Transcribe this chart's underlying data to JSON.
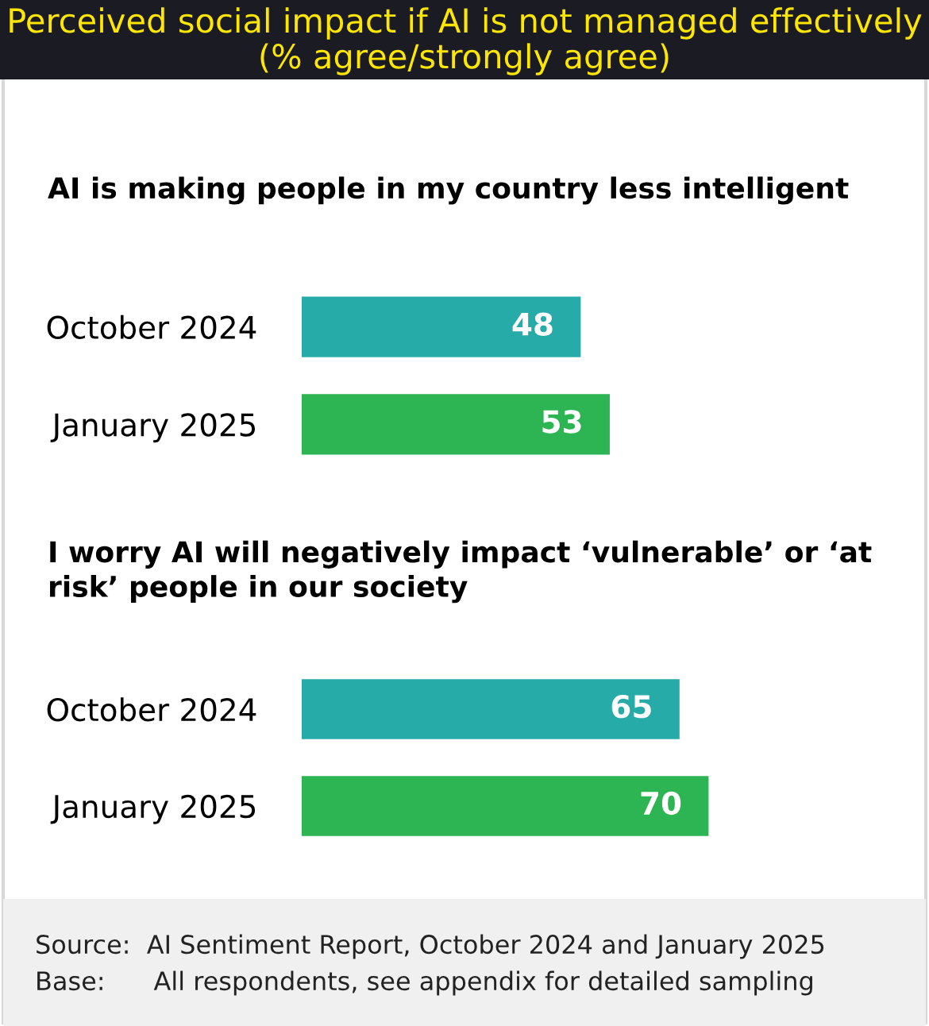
{
  "chart_data": [
    {
      "type": "bar",
      "orientation": "horizontal",
      "title": "Perceived social impact if AI is not managed effectively (% agree/strongly agree)",
      "subtitle": "AI is making people in my country less intelligent",
      "categories": [
        "October 2024",
        "January 2025"
      ],
      "values": [
        48,
        53
      ],
      "colors": [
        "#27aba9",
        "#2db553"
      ],
      "tick_labels": "y",
      "data_labels": true,
      "grid": false,
      "legend": false
    },
    {
      "type": "bar",
      "orientation": "horizontal",
      "subtitle": "I worry AI will negatively impact ‘vulnerable’ or ‘at risk’ people in our society",
      "categories": [
        "October 2024",
        "January 2025"
      ],
      "values": [
        65,
        70
      ],
      "colors": [
        "#27aba9",
        "#2db553"
      ],
      "tick_labels": "y",
      "data_labels": true,
      "grid": false,
      "legend": false,
      "annotations": [
        "Source:  AI Sentiment Report, October 2024 and January 2025",
        "Base:      All respondents, see appendix for detailed sampling"
      ]
    }
  ]
}
